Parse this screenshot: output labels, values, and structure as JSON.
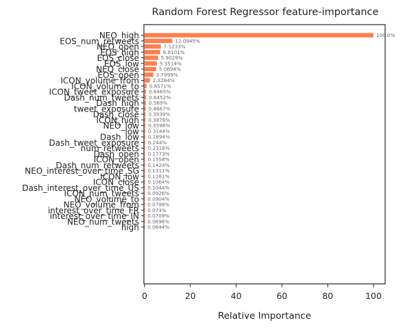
{
  "chart_data": {
    "type": "bar",
    "orientation": "horizontal",
    "title": "Random Forest Regressor feature-importance",
    "xlabel": "Relative Importance",
    "ylabel": "",
    "xlim": [
      0,
      105
    ],
    "xticks": [
      0,
      20,
      40,
      60,
      80,
      100
    ],
    "bar_color": "#ff7f50",
    "grid": false,
    "categories": [
      "NEO_high",
      "EOS_num_retweets",
      "NEO_open",
      "EOS_high",
      "EOS_close",
      "EOS_low",
      "NEO_close",
      "EOS_open",
      "ICON_volume_from",
      "ICON_volume_to",
      "ICON_tweet_exposure",
      "Dash_num_tweets",
      "Dash_high",
      "tweet_exposure",
      "Dash_close",
      "ICON_high",
      "NEO_low",
      "low",
      "Dash_low",
      "Dash_tweet_exposure",
      "num_retweets",
      "Dash_open",
      "ICON_open",
      "Dash_num_retweets",
      "NEO_interest_over_time_SG",
      "ICON_low",
      "ICON_close",
      "Dash_interest_over_time_US",
      "ICON_num_tweets",
      "NEO_volume_to",
      "NEO_volume_from",
      "interest_over_time_FR",
      "interest_over_time_IN",
      "NEO_num_tweets",
      "high"
    ],
    "values": [
      100.0,
      12.0945,
      7.1233,
      6.8101,
      5.9029,
      5.3514,
      5.0694,
      3.7999,
      2.3284,
      0.8571,
      0.6465,
      0.6452,
      0.569,
      0.4667,
      0.3939,
      0.3876,
      0.3598,
      0.3144,
      0.2894,
      0.244,
      0.2316,
      0.1773,
      0.1558,
      0.1424,
      0.1311,
      0.1281,
      0.1064,
      0.1044,
      0.0926,
      0.0904,
      0.0798,
      0.073,
      0.0709,
      0.0696,
      0.0644
    ],
    "value_labels": [
      "100.0%",
      "12.0945%",
      "7.1233%",
      "6.8101%",
      "5.9029%",
      "5.3514%",
      "5.0694%",
      "3.7999%",
      "2.3284%",
      "0.8571%",
      "0.6465%",
      "0.6452%",
      "0.569%",
      "0.4667%",
      "0.3939%",
      "0.3876%",
      "0.3598%",
      "0.3144%",
      "0.2894%",
      "0.244%",
      "0.2316%",
      "0.1773%",
      "0.1558%",
      "0.1424%",
      "0.1311%",
      "0.1281%",
      "0.1064%",
      "0.1044%",
      "0.0926%",
      "0.0904%",
      "0.0798%",
      "0.073%",
      "0.0709%",
      "0.0696%",
      "0.0644%"
    ]
  }
}
